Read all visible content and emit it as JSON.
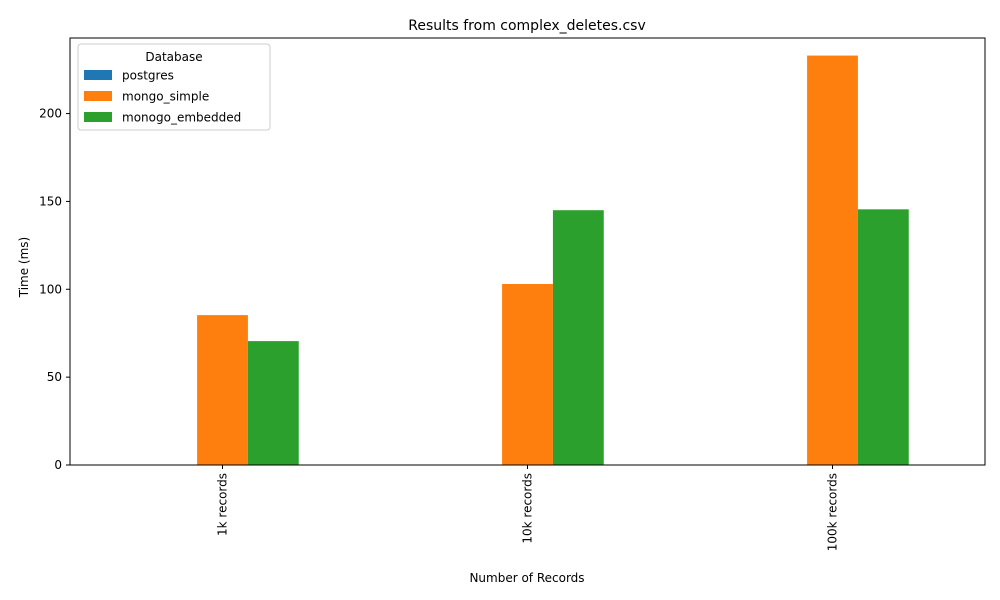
{
  "chart_data": {
    "type": "bar",
    "title": "Results from complex_deletes.csv",
    "xlabel": "Number of Records",
    "ylabel": "Time (ms)",
    "categories": [
      "1k records",
      "10k records",
      "100k records"
    ],
    "ylim": [
      0,
      243
    ],
    "yticks": [
      0,
      50,
      100,
      150,
      200
    ],
    "grid": false,
    "legend": {
      "title": "Database",
      "position": "top-left"
    },
    "series": [
      {
        "name": "postgres",
        "color": "#1f77b4",
        "values": [
          0,
          0,
          0
        ]
      },
      {
        "name": " mongo_simple",
        "color": "#ff7f0e",
        "values": [
          85.3,
          103.0,
          233.0
        ]
      },
      {
        "name": " monogo_embedded",
        "color": "#2ca02c",
        "values": [
          70.5,
          145.0,
          145.5
        ]
      }
    ]
  }
}
